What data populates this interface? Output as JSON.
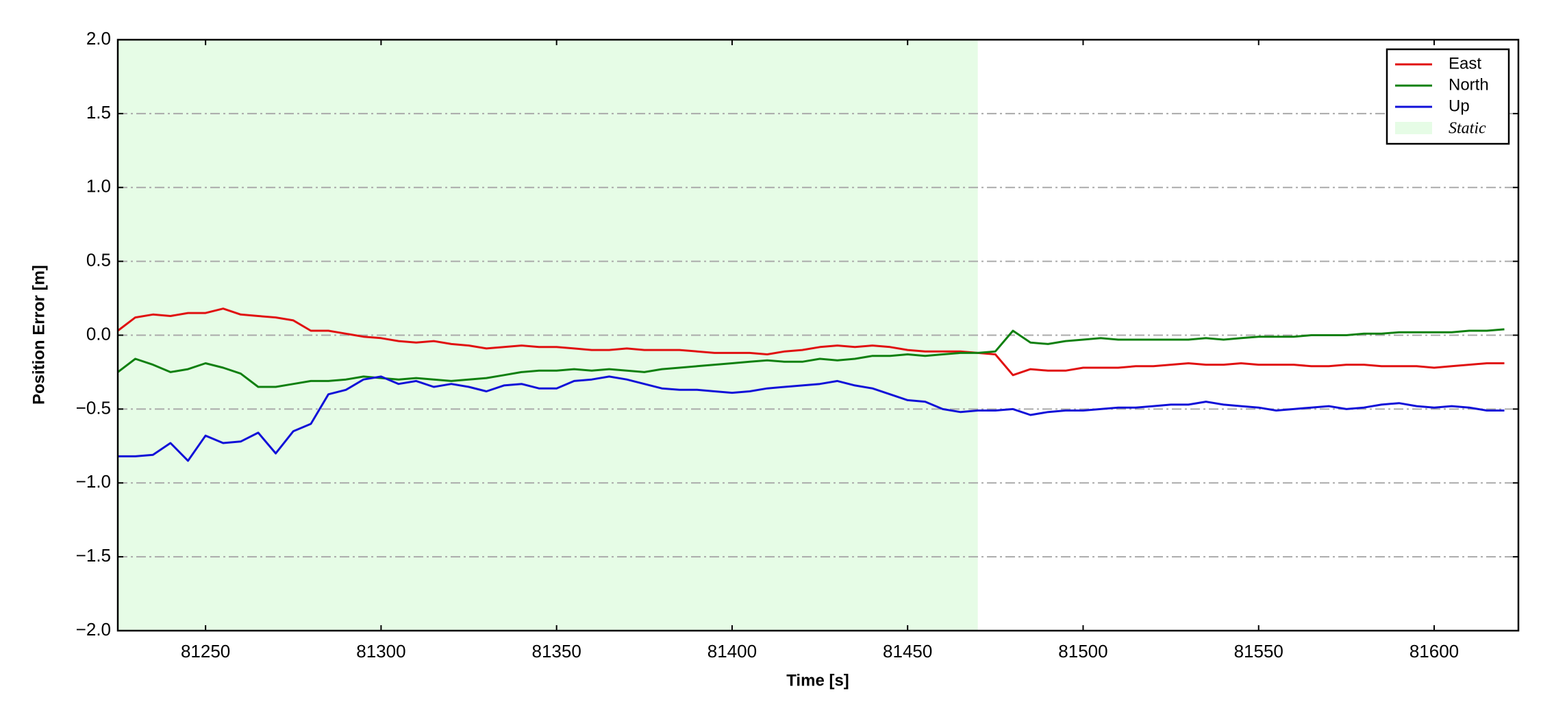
{
  "chart_data": {
    "type": "line",
    "xlabel": "Time [s]",
    "ylabel": "Position Error [m]",
    "xlim": [
      81225,
      81624
    ],
    "ylim": [
      -2,
      2
    ],
    "xticks": [
      81250,
      81300,
      81350,
      81400,
      81450,
      81500,
      81550,
      81600
    ],
    "yticks": [
      {
        "value": -2,
        "label": "−2.0"
      },
      {
        "value": -1.5,
        "label": "−1.5"
      },
      {
        "value": -1,
        "label": "−1.0"
      },
      {
        "value": -0.5,
        "label": "−0.5"
      },
      {
        "value": 0,
        "label": "0.0"
      },
      0.5,
      {
        "value": 1,
        "label": "1.0"
      },
      1.5,
      {
        "value": 2,
        "label": "2.0"
      }
    ],
    "grid": "y",
    "legend": "upper right",
    "shade": {
      "label": "Static",
      "xlim": [
        81225,
        81470
      ],
      "color": "#e6fce6"
    },
    "x": [
      81225,
      81230,
      81235,
      81240,
      81245,
      81250,
      81255,
      81260,
      81265,
      81270,
      81275,
      81280,
      81285,
      81290,
      81295,
      81300,
      81305,
      81310,
      81315,
      81320,
      81325,
      81330,
      81335,
      81340,
      81345,
      81350,
      81355,
      81360,
      81365,
      81370,
      81375,
      81380,
      81385,
      81390,
      81395,
      81400,
      81405,
      81410,
      81415,
      81420,
      81425,
      81430,
      81435,
      81440,
      81445,
      81450,
      81455,
      81460,
      81465,
      81470,
      81475,
      81480,
      81485,
      81490,
      81495,
      81500,
      81505,
      81510,
      81515,
      81520,
      81525,
      81530,
      81535,
      81540,
      81545,
      81550,
      81555,
      81560,
      81565,
      81570,
      81575,
      81580,
      81585,
      81590,
      81595,
      81600,
      81605,
      81610,
      81615,
      81620
    ],
    "series": [
      {
        "name": "East",
        "color": "#e01010",
        "values": [
          0.03,
          0.12,
          0.14,
          0.13,
          0.15,
          0.15,
          0.18,
          0.14,
          0.13,
          0.12,
          0.1,
          0.03,
          0.03,
          0.01,
          -0.01,
          -0.02,
          -0.04,
          -0.05,
          -0.04,
          -0.06,
          -0.07,
          -0.09,
          -0.08,
          -0.07,
          -0.08,
          -0.08,
          -0.09,
          -0.1,
          -0.1,
          -0.09,
          -0.1,
          -0.1,
          -0.1,
          -0.11,
          -0.12,
          -0.12,
          -0.12,
          -0.13,
          -0.11,
          -0.1,
          -0.08,
          -0.07,
          -0.08,
          -0.07,
          -0.08,
          -0.1,
          -0.11,
          -0.11,
          -0.11,
          -0.12,
          -0.13,
          -0.27,
          -0.23,
          -0.24,
          -0.24,
          -0.22,
          -0.22,
          -0.22,
          -0.21,
          -0.21,
          -0.2,
          -0.19,
          -0.2,
          -0.2,
          -0.19,
          -0.2,
          -0.2,
          -0.2,
          -0.21,
          -0.21,
          -0.2,
          -0.2,
          -0.21,
          -0.21,
          -0.21,
          -0.22,
          -0.21,
          -0.2,
          -0.19,
          -0.19
        ]
      },
      {
        "name": "North",
        "color": "#108010",
        "values": [
          -0.25,
          -0.16,
          -0.2,
          -0.25,
          -0.23,
          -0.19,
          -0.22,
          -0.26,
          -0.35,
          -0.35,
          -0.33,
          -0.31,
          -0.31,
          -0.3,
          -0.28,
          -0.29,
          -0.3,
          -0.29,
          -0.3,
          -0.31,
          -0.3,
          -0.29,
          -0.27,
          -0.25,
          -0.24,
          -0.24,
          -0.23,
          -0.24,
          -0.23,
          -0.24,
          -0.25,
          -0.23,
          -0.22,
          -0.21,
          -0.2,
          -0.19,
          -0.18,
          -0.17,
          -0.18,
          -0.18,
          -0.16,
          -0.17,
          -0.16,
          -0.14,
          -0.14,
          -0.13,
          -0.14,
          -0.13,
          -0.12,
          -0.12,
          -0.11,
          0.03,
          -0.05,
          -0.06,
          -0.04,
          -0.03,
          -0.02,
          -0.03,
          -0.03,
          -0.03,
          -0.03,
          -0.03,
          -0.02,
          -0.03,
          -0.02,
          -0.01,
          -0.01,
          -0.01,
          0.0,
          0.0,
          0.0,
          0.01,
          0.01,
          0.02,
          0.02,
          0.02,
          0.02,
          0.03,
          0.03,
          0.04
        ]
      },
      {
        "name": "Up",
        "color": "#1010d8",
        "values": [
          -0.82,
          -0.82,
          -0.81,
          -0.73,
          -0.85,
          -0.68,
          -0.73,
          -0.72,
          -0.66,
          -0.8,
          -0.65,
          -0.6,
          -0.4,
          -0.37,
          -0.3,
          -0.28,
          -0.33,
          -0.31,
          -0.35,
          -0.33,
          -0.35,
          -0.38,
          -0.34,
          -0.33,
          -0.36,
          -0.36,
          -0.31,
          -0.3,
          -0.28,
          -0.3,
          -0.33,
          -0.36,
          -0.37,
          -0.37,
          -0.38,
          -0.39,
          -0.38,
          -0.36,
          -0.35,
          -0.34,
          -0.33,
          -0.31,
          -0.34,
          -0.36,
          -0.4,
          -0.44,
          -0.45,
          -0.5,
          -0.52,
          -0.51,
          -0.51,
          -0.5,
          -0.54,
          -0.52,
          -0.51,
          -0.51,
          -0.5,
          -0.49,
          -0.49,
          -0.48,
          -0.47,
          -0.47,
          -0.45,
          -0.47,
          -0.48,
          -0.49,
          -0.51,
          -0.5,
          -0.49,
          -0.48,
          -0.5,
          -0.49,
          -0.47,
          -0.46,
          -0.48,
          -0.49,
          -0.48,
          -0.49,
          -0.51,
          -0.51
        ]
      }
    ]
  }
}
